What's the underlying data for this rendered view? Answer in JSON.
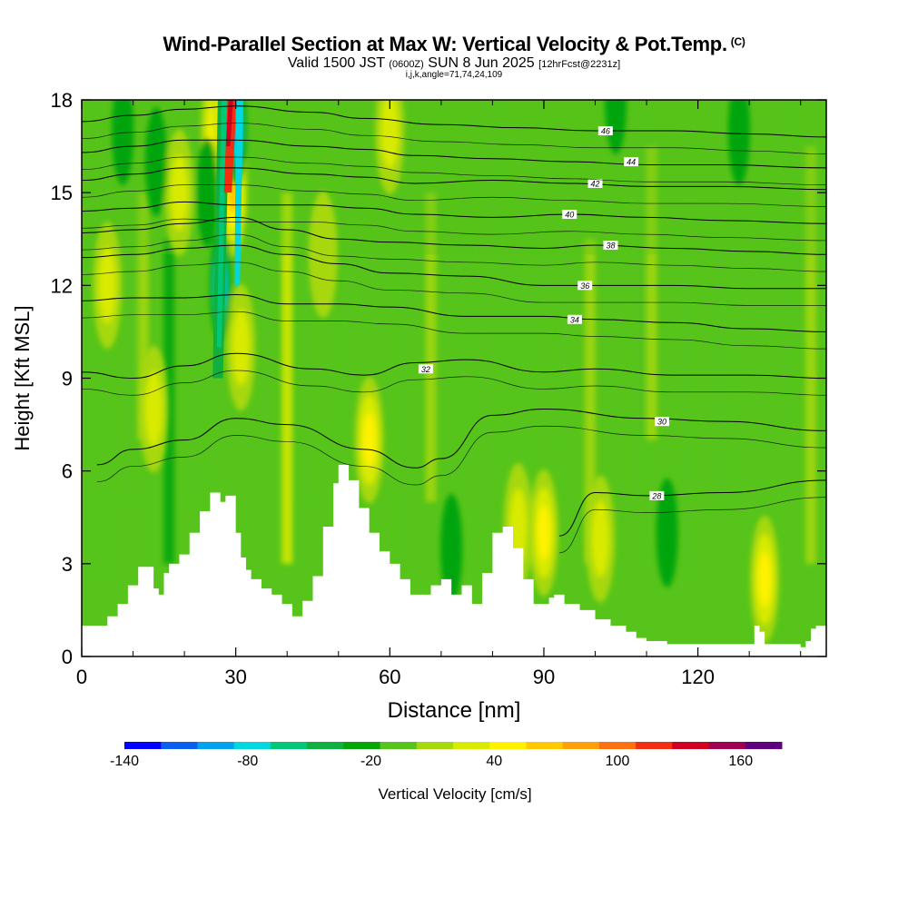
{
  "header": {
    "title": "Wind-Parallel Section at Max W: Vertical Velocity & Pot.Temp.",
    "copyright": "(C)",
    "valid_prefix": "Valid 1500 JST",
    "utc": "(0600Z)",
    "date": "SUN 8 Jun 2025",
    "fcst": "[12hrFcst@2231z]",
    "indices": "i,j,k,angle=71,74,24,109"
  },
  "chart_data": {
    "type": "heatmap",
    "title": "Wind-Parallel Section at Max W: Vertical Velocity & Pot.Temp.",
    "xlabel": "Distance [nm]",
    "ylabel": "Height [Kft MSL]",
    "xlim": [
      0,
      145
    ],
    "ylim": [
      0,
      18
    ],
    "xticks": [
      0,
      30,
      60,
      90,
      120
    ],
    "yticks": [
      0,
      3,
      6,
      9,
      12,
      15,
      18
    ],
    "colorbar": {
      "label": "Vertical Velocity [cm/s]",
      "min": -140,
      "max": 180,
      "step": 20,
      "tick_labels": [
        "-140",
        "-80",
        "-20",
        "40",
        "100",
        "160"
      ],
      "colors": [
        "#0000ff",
        "#0a5fee",
        "#00a2ee",
        "#00d8e0",
        "#00c878",
        "#10b040",
        "#06a508",
        "#56c41a",
        "#a6d80c",
        "#d8ea00",
        "#fff200",
        "#ffc800",
        "#ffa008",
        "#ff7010",
        "#f03010",
        "#d00020",
        "#a00050",
        "#600080"
      ]
    },
    "terrain": [
      [
        0,
        1
      ],
      [
        3,
        1
      ],
      [
        5,
        1.3
      ],
      [
        7,
        1.7
      ],
      [
        9,
        2.3
      ],
      [
        11,
        2.9
      ],
      [
        13,
        2.9
      ],
      [
        14,
        2.2
      ],
      [
        15,
        2
      ],
      [
        16,
        2.7
      ],
      [
        17,
        3
      ],
      [
        19,
        3.3
      ],
      [
        21,
        4
      ],
      [
        23,
        4.7
      ],
      [
        25,
        5.3
      ],
      [
        27,
        5
      ],
      [
        28,
        5.2
      ],
      [
        30,
        4
      ],
      [
        31,
        3.2
      ],
      [
        32,
        2.8
      ],
      [
        33,
        2.5
      ],
      [
        35,
        2.2
      ],
      [
        37,
        2
      ],
      [
        39,
        1.7
      ],
      [
        41,
        1.3
      ],
      [
        43,
        1.8
      ],
      [
        45,
        2.6
      ],
      [
        47,
        4.2
      ],
      [
        49,
        5.6
      ],
      [
        50,
        6.2
      ],
      [
        52,
        5.7
      ],
      [
        54,
        4.8
      ],
      [
        56,
        4
      ],
      [
        58,
        3.4
      ],
      [
        60,
        3
      ],
      [
        62,
        2.5
      ],
      [
        64,
        2
      ],
      [
        66,
        2
      ],
      [
        68,
        2.3
      ],
      [
        70,
        2.5
      ],
      [
        72,
        2
      ],
      [
        74,
        2.3
      ],
      [
        76,
        1.7
      ],
      [
        78,
        2.7
      ],
      [
        80,
        4
      ],
      [
        82,
        4.2
      ],
      [
        84,
        3.5
      ],
      [
        86,
        2.5
      ],
      [
        88,
        1.7
      ],
      [
        90,
        1.7
      ],
      [
        91,
        1.9
      ],
      [
        92,
        2
      ],
      [
        94,
        1.7
      ],
      [
        97,
        1.5
      ],
      [
        100,
        1.2
      ],
      [
        103,
        1
      ],
      [
        106,
        0.8
      ],
      [
        108,
        0.6
      ],
      [
        110,
        0.5
      ],
      [
        114,
        0.4
      ],
      [
        130,
        0.4
      ],
      [
        131,
        1
      ],
      [
        132,
        0.8
      ],
      [
        133,
        0.4
      ],
      [
        138,
        0.4
      ],
      [
        140,
        0.3
      ],
      [
        141,
        0.5
      ],
      [
        142,
        0.9
      ],
      [
        143,
        1
      ],
      [
        145,
        1
      ]
    ],
    "updrafts_cms": [
      {
        "x": 5,
        "z": 12,
        "w": 40
      },
      {
        "x": 14,
        "z": 8,
        "w": 40
      },
      {
        "x": 19,
        "z": 15,
        "w": 50
      },
      {
        "x": 26,
        "z": 17,
        "w": 60
      },
      {
        "x": 28.5,
        "z": 17.5,
        "w": 120
      },
      {
        "x": 29.5,
        "z": 15,
        "w": 90
      },
      {
        "x": 31,
        "z": 10,
        "w": 40
      },
      {
        "x": 47,
        "z": 13,
        "w": 20
      },
      {
        "x": 56,
        "z": 7,
        "w": 60
      },
      {
        "x": 60,
        "z": 17,
        "w": 40
      },
      {
        "x": 85,
        "z": 4.2,
        "w": 40
      },
      {
        "x": 90,
        "z": 4,
        "w": 60
      },
      {
        "x": 101,
        "z": 3.8,
        "w": 40
      },
      {
        "x": 133,
        "z": 2.5,
        "w": 60
      }
    ],
    "downdrafts_cms": [
      {
        "x": 27,
        "z": 12,
        "w": -100
      },
      {
        "x": 30,
        "z": 17,
        "w": -100
      },
      {
        "x": 24.5,
        "z": 15,
        "w": -30
      },
      {
        "x": 14.5,
        "z": 16,
        "w": -30
      },
      {
        "x": 8,
        "z": 17,
        "w": -30
      },
      {
        "x": 72,
        "z": 3.5,
        "w": -30
      },
      {
        "x": 104,
        "z": 18,
        "w": -20
      },
      {
        "x": 114,
        "z": 4,
        "w": -25
      },
      {
        "x": 128,
        "z": 17,
        "w": -25
      }
    ],
    "theta_isentropes": [
      {
        "label": "28",
        "pts": [
          [
            93,
            3.9
          ],
          [
            100,
            5.3
          ],
          [
            110,
            5.2
          ],
          [
            125,
            5.3
          ],
          [
            145,
            5.7
          ]
        ],
        "label_at": [
          112,
          5.2
        ]
      },
      {
        "label": "30",
        "pts": [
          [
            3,
            6.2
          ],
          [
            10,
            6.7
          ],
          [
            20,
            7
          ],
          [
            30,
            7.7
          ],
          [
            40,
            7.5
          ],
          [
            55,
            6.7
          ],
          [
            65,
            6.1
          ],
          [
            70,
            6.4
          ],
          [
            80,
            7.8
          ],
          [
            90,
            8
          ],
          [
            110,
            7.7
          ],
          [
            125,
            7.6
          ],
          [
            145,
            7.3
          ]
        ],
        "label_at": [
          113,
          7.6
        ]
      },
      {
        "label": "32",
        "pts": [
          [
            0,
            9.2
          ],
          [
            10,
            9
          ],
          [
            20,
            9.4
          ],
          [
            30,
            9.8
          ],
          [
            45,
            9.3
          ],
          [
            55,
            9.1
          ],
          [
            65,
            9.5
          ],
          [
            75,
            9.6
          ],
          [
            90,
            9.2
          ],
          [
            100,
            9.3
          ],
          [
            115,
            9.1
          ],
          [
            130,
            9.1
          ],
          [
            145,
            9
          ]
        ],
        "label_at": [
          67,
          9.3
        ]
      },
      {
        "label": "34",
        "pts": [
          [
            0,
            11.5
          ],
          [
            10,
            11.6
          ],
          [
            20,
            11.6
          ],
          [
            30,
            11.7
          ],
          [
            40,
            11.4
          ],
          [
            50,
            11.4
          ],
          [
            60,
            11.3
          ],
          [
            75,
            11
          ],
          [
            90,
            11
          ],
          [
            100,
            10.9
          ],
          [
            115,
            10.8
          ],
          [
            130,
            10.6
          ],
          [
            145,
            10.5
          ]
        ],
        "label_at": [
          96,
          10.9
        ]
      },
      {
        "label": "36",
        "pts": [
          [
            0,
            12.9
          ],
          [
            10,
            13
          ],
          [
            20,
            13.2
          ],
          [
            30,
            13.3
          ],
          [
            40,
            13
          ],
          [
            50,
            12.7
          ],
          [
            60,
            12.4
          ],
          [
            75,
            12.3
          ],
          [
            90,
            12
          ],
          [
            100,
            12
          ],
          [
            115,
            12
          ],
          [
            130,
            11.9
          ],
          [
            145,
            11.9
          ]
        ],
        "label_at": [
          98,
          12.0
        ]
      },
      {
        "label": "38",
        "pts": [
          [
            0,
            13.7
          ],
          [
            10,
            13.8
          ],
          [
            20,
            14
          ],
          [
            30,
            14.2
          ],
          [
            40,
            13.8
          ],
          [
            50,
            13.5
          ],
          [
            60,
            13.4
          ],
          [
            75,
            13.3
          ],
          [
            90,
            13.2
          ],
          [
            100,
            13.3
          ],
          [
            115,
            13.2
          ],
          [
            130,
            13.1
          ],
          [
            145,
            13
          ]
        ],
        "label_at": [
          103,
          13.3
        ]
      },
      {
        "label": "40",
        "pts": [
          [
            0,
            14.4
          ],
          [
            10,
            14.5
          ],
          [
            20,
            14.7
          ],
          [
            30,
            14.6
          ],
          [
            45,
            14.6
          ],
          [
            55,
            14.5
          ],
          [
            65,
            14.3
          ],
          [
            80,
            14.2
          ],
          [
            95,
            14.3
          ],
          [
            110,
            14.2
          ],
          [
            125,
            14.1
          ],
          [
            145,
            14
          ]
        ],
        "label_at": [
          95,
          14.3
        ]
      },
      {
        "label": "42",
        "pts": [
          [
            0,
            15.4
          ],
          [
            10,
            15.6
          ],
          [
            20,
            15.8
          ],
          [
            30,
            15.8
          ],
          [
            45,
            15.6
          ],
          [
            55,
            15.5
          ],
          [
            65,
            15.3
          ],
          [
            80,
            15.4
          ],
          [
            95,
            15.3
          ],
          [
            110,
            15.2
          ],
          [
            125,
            15.2
          ],
          [
            145,
            15.1
          ]
        ],
        "label_at": [
          100,
          15.3
        ]
      },
      {
        "label": "44",
        "pts": [
          [
            0,
            16.3
          ],
          [
            10,
            16.5
          ],
          [
            20,
            16.7
          ],
          [
            30,
            16.7
          ],
          [
            45,
            16.5
          ],
          [
            55,
            16.4
          ],
          [
            65,
            16.2
          ],
          [
            80,
            16.1
          ],
          [
            95,
            16
          ],
          [
            110,
            15.9
          ],
          [
            125,
            15.9
          ],
          [
            145,
            15.8
          ]
        ],
        "label_at": [
          107,
          16.0
        ]
      },
      {
        "label": "46",
        "pts": [
          [
            0,
            17.3
          ],
          [
            10,
            17.5
          ],
          [
            20,
            17.7
          ],
          [
            30,
            17.8
          ],
          [
            45,
            17.6
          ],
          [
            55,
            17.4
          ],
          [
            70,
            17.2
          ],
          [
            85,
            17.1
          ],
          [
            100,
            17
          ],
          [
            115,
            17
          ],
          [
            130,
            16.9
          ],
          [
            145,
            16.8
          ]
        ],
        "label_at": [
          102,
          17.0
        ]
      }
    ]
  }
}
